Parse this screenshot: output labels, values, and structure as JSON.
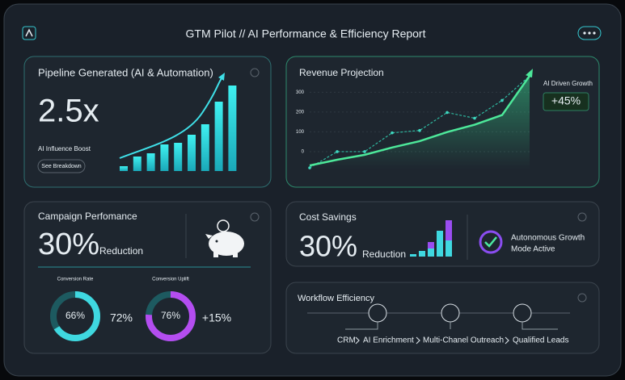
{
  "header": {
    "title": "GTM Pilot // AI Performance & Efficiency Report"
  },
  "pipeline": {
    "title": "Pipeline Generated (AI & Automation)",
    "value": "2.5x",
    "subtitle": "AI Influence Boost",
    "button": "See Breakdown",
    "bars": [
      6,
      18,
      22,
      33,
      35,
      45,
      58,
      86,
      106
    ]
  },
  "revenue": {
    "title": "Revenue Projection",
    "badge_title": "AI Driven Growth",
    "badge_value": "+45%",
    "ylim": [
      -90,
      420
    ],
    "yticks": [
      0,
      100,
      200,
      300
    ],
    "series": [
      {
        "name": "Projection",
        "values": [
          -82,
          0,
          0,
          95,
          107,
          198,
          169,
          259,
          383
        ]
      },
      {
        "name": "AI Driven",
        "values": [
          -70,
          -41,
          -16,
          21,
          53,
          99,
          136,
          185,
          383
        ]
      }
    ]
  },
  "campaign": {
    "title": "Campaign Perfomance",
    "value": "30%",
    "unit": "Reduction",
    "donuts": [
      {
        "label": "Conversion Rate",
        "value": 66,
        "value_label": "66%",
        "side": "72%"
      },
      {
        "label": "Conversion Uplift",
        "value": 76,
        "value_label": "76%",
        "side": "+15%"
      }
    ]
  },
  "cost": {
    "title": "Cost Savings",
    "value": "30%",
    "unit": "Reduction",
    "bars_base": [
      3,
      7,
      10,
      32,
      20
    ],
    "bars_top": [
      0,
      0,
      8,
      0,
      25
    ],
    "status": [
      "Autonomous Growth",
      "Mode Active"
    ]
  },
  "workflow": {
    "title": "Workflow Efficiency",
    "steps": [
      "CRM",
      "AI Enrichment",
      "Multi-Chanel Outreach",
      "Qualified Leads"
    ]
  }
}
